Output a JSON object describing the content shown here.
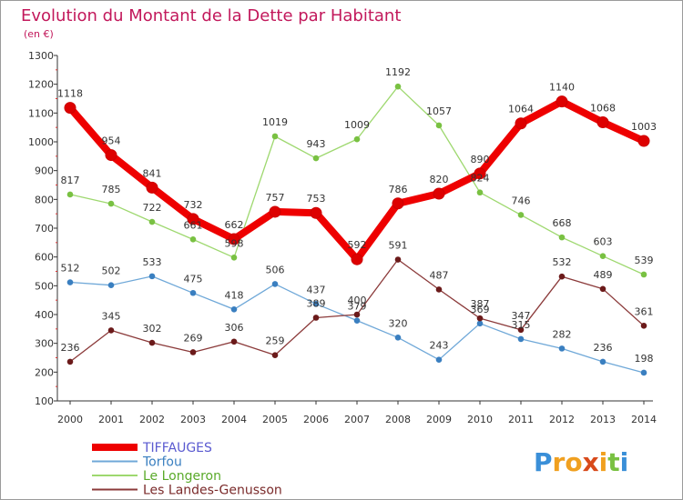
{
  "title": "Evolution du Montant de la Dette par Habitant",
  "unit_label": "(en €)",
  "logo": {
    "letters": [
      "P",
      "r",
      "o",
      "x",
      "i",
      "t",
      "i"
    ],
    "colors": [
      "#3a8fd8",
      "#f0a020",
      "#f0a020",
      "#d84a1b",
      "#f0a020",
      "#79c142",
      "#3a8fd8"
    ]
  },
  "chart_data": {
    "type": "line",
    "x": [
      "2000",
      "2001",
      "2002",
      "2003",
      "2004",
      "2005",
      "2006",
      "2007",
      "2008",
      "2009",
      "2010",
      "2011",
      "2012",
      "2013",
      "2014"
    ],
    "ylim": [
      100,
      1300
    ],
    "yticks": [
      "100",
      "200",
      "300",
      "400",
      "500",
      "600",
      "700",
      "800",
      "900",
      "1000",
      "1100",
      "1200",
      "1300"
    ],
    "grid": false,
    "legend_position": "bottom-left",
    "series": [
      {
        "name": "TIFFAUGES",
        "color": "#ee0000",
        "legend_color": "#5a5ad0",
        "point_color": "#dd0000",
        "values": [
          1118,
          954,
          841,
          732,
          662,
          757,
          753,
          592,
          786,
          820,
          890,
          1064,
          1140,
          1068,
          1003
        ],
        "labels": [
          "1118",
          "954",
          "841",
          "732",
          "662",
          "757",
          "753",
          "592",
          "786",
          "820",
          "890",
          "1064",
          "1140",
          "1068",
          "1003"
        ]
      },
      {
        "name": "Torfou",
        "color": "#6fa8d8",
        "legend_color": "#3a7fc0",
        "point_color": "#3a7fc0",
        "values": [
          512,
          502,
          533,
          475,
          418,
          506,
          437,
          379,
          320,
          243,
          369,
          315,
          282,
          236,
          198
        ],
        "labels": [
          "512",
          "502",
          "533",
          "475",
          "418",
          "506",
          "437",
          "379",
          "320",
          "243",
          "369",
          "315",
          "282",
          "236",
          "198"
        ]
      },
      {
        "name": "Le Longeron",
        "color": "#9ed86f",
        "legend_color": "#5aaa2a",
        "point_color": "#79c142",
        "values": [
          817,
          785,
          722,
          661,
          598,
          1019,
          943,
          1009,
          1192,
          1057,
          824,
          746,
          668,
          603,
          539
        ],
        "labels": [
          "817",
          "785",
          "722",
          "661",
          "598",
          "1019",
          "943",
          "1009",
          "1192",
          "1057",
          "824",
          "746",
          "668",
          "603",
          "539"
        ]
      },
      {
        "name": "Les Landes-Genusson",
        "color": "#8b3a3a",
        "legend_color": "#7a2a2a",
        "point_color": "#6b1a1a",
        "values": [
          236,
          345,
          302,
          269,
          306,
          259,
          389,
          400,
          591,
          487,
          387,
          347,
          532,
          489,
          361
        ],
        "labels": [
          "236",
          "345",
          "302",
          "269",
          "306",
          "259",
          "389",
          "400",
          "591",
          "487",
          "387",
          "347",
          "532",
          "489",
          "361"
        ]
      }
    ]
  }
}
